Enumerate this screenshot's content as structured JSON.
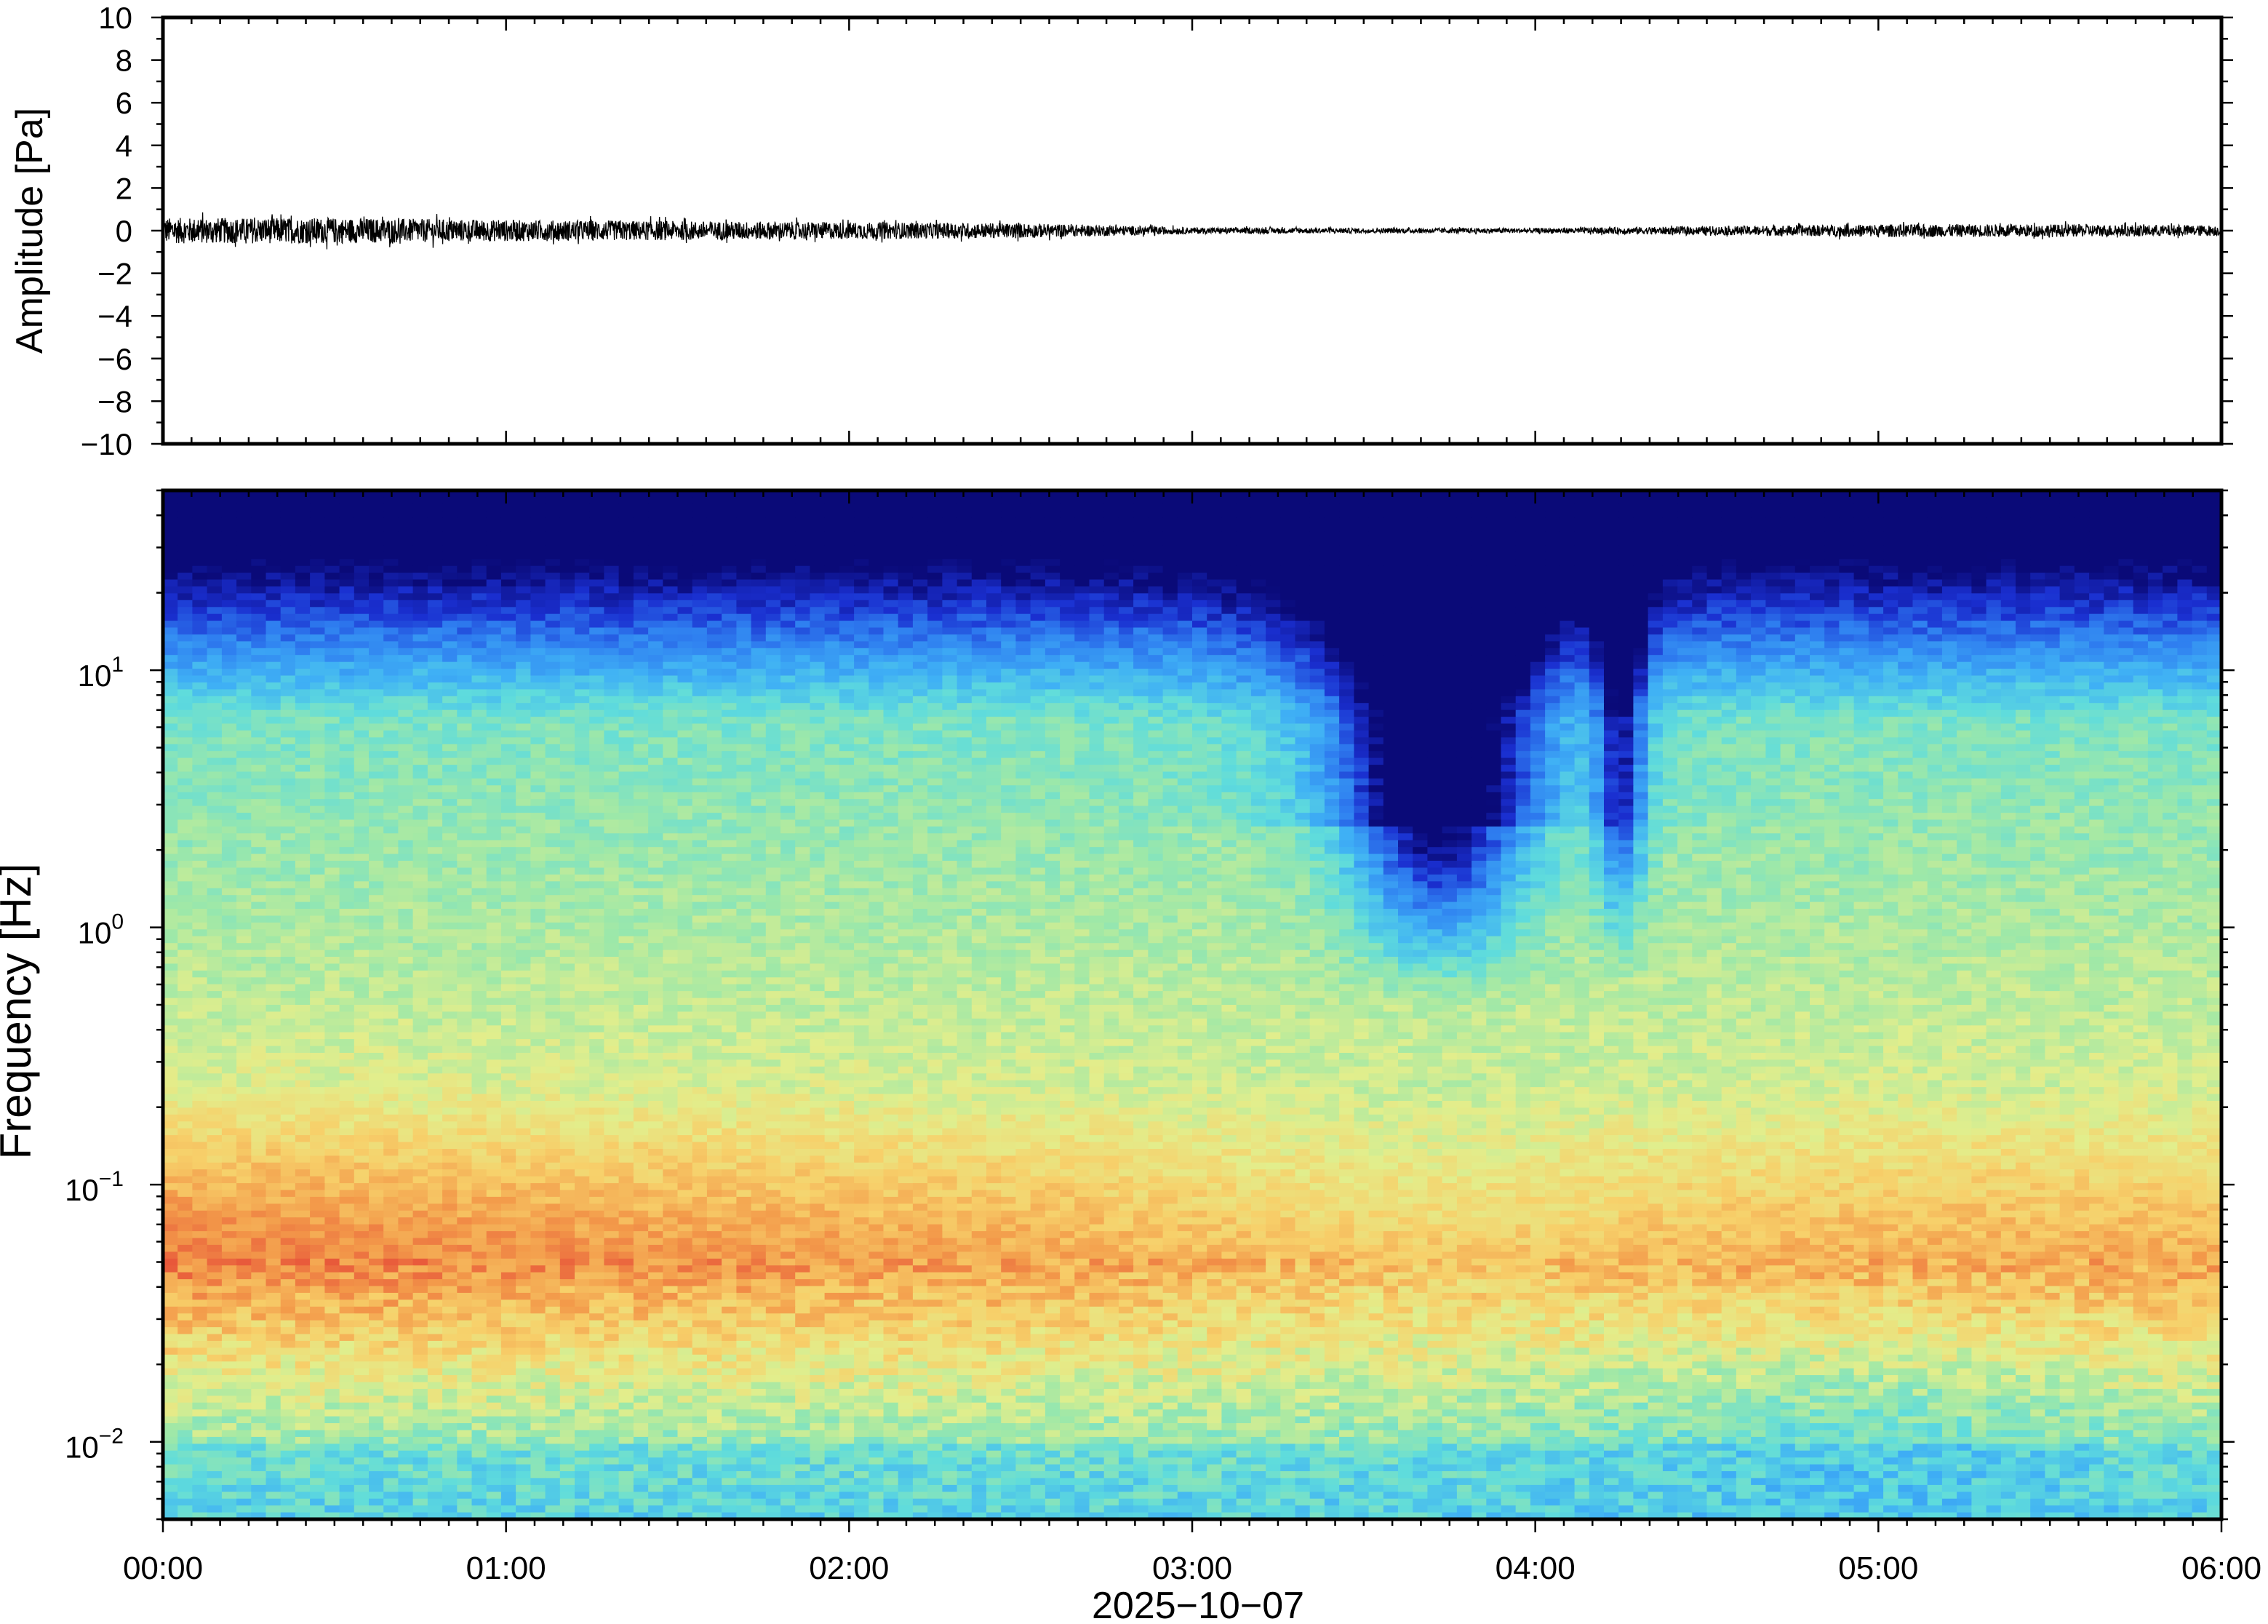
{
  "chart_data": [
    {
      "type": "line",
      "panel": "waveform",
      "ylabel": "Amplitude [Pa]",
      "xlim": [
        "00:00",
        "06:00"
      ],
      "ylim": [
        -10,
        10
      ],
      "yticks": [
        "10",
        "8",
        "6",
        "4",
        "2",
        "0",
        "−2",
        "−4",
        "−6",
        "−8",
        "−10"
      ],
      "ytick_values": [
        10,
        8,
        6,
        4,
        2,
        0,
        -2,
        -4,
        -6,
        -8,
        -10
      ],
      "envelope_series": {
        "x_hours": [
          0,
          0.5,
          1,
          1.5,
          2,
          2.5,
          3,
          3.5,
          4,
          4.5,
          5,
          5.5,
          6
        ],
        "peak_amplitude_pa": [
          0.6,
          0.6,
          0.5,
          0.45,
          0.4,
          0.35,
          0.15,
          0.12,
          0.12,
          0.2,
          0.3,
          0.3,
          0.25
        ]
      },
      "line_color": "#000000"
    },
    {
      "type": "heatmap",
      "panel": "spectrogram",
      "ylabel": "Frequency [Hz]",
      "xlabel": "2025−10−07",
      "xlim": [
        "00:00",
        "06:00"
      ],
      "ylim": [
        0.005,
        50
      ],
      "yscale": "log",
      "ytick_labels": [
        {
          "base": "10",
          "exp": "1",
          "value": 10
        },
        {
          "base": "10",
          "exp": "0",
          "value": 1
        },
        {
          "base": "10",
          "exp": "−1",
          "value": 0.1
        },
        {
          "base": "10",
          "exp": "−2",
          "value": 0.01
        }
      ],
      "xtick_labels": [
        "00:00",
        "01:00",
        "02:00",
        "03:00",
        "04:00",
        "05:00",
        "06:00"
      ],
      "colormap": [
        "#0a0a78",
        "#1a2fd0",
        "#2f7ff0",
        "#3fb0f5",
        "#5fdcdc",
        "#9ee8a8",
        "#e2ee8c",
        "#f7d06a",
        "#f39a4a",
        "#e8583a"
      ],
      "low_power_color": "#0a0a78",
      "high_power_color": "#f4913f"
    }
  ]
}
